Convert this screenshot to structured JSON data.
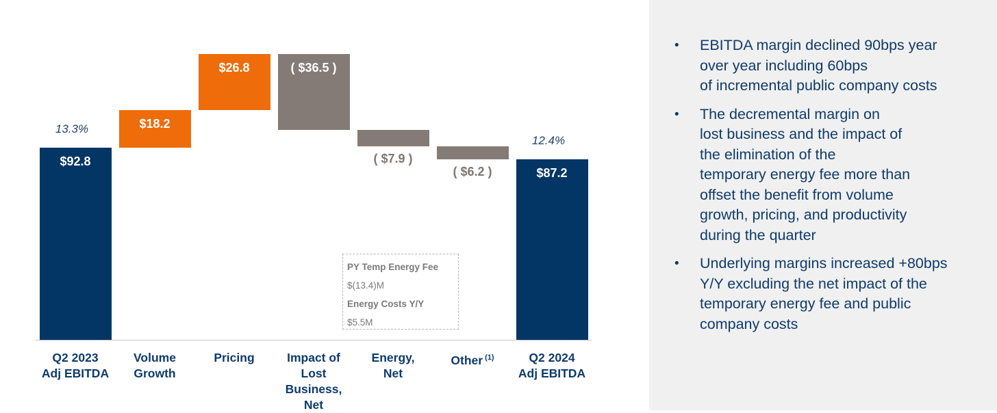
{
  "chart_data": {
    "type": "waterfall",
    "currency": "$M",
    "categories": [
      "Q2 2023 Adj EBITDA",
      "Volume Growth",
      "Pricing",
      "Impact of Lost Business, Net",
      "Energy, Net",
      "Other",
      "Q2 2024 Adj EBITDA"
    ],
    "steps": [
      {
        "category": "Q2 2023 Adj EBITDA",
        "kind": "total",
        "value": 92.8,
        "label": "$92.8",
        "margin_label": "13.3%"
      },
      {
        "category": "Volume Growth",
        "kind": "increase",
        "value": 18.2,
        "label": "$18.2"
      },
      {
        "category": "Pricing",
        "kind": "increase",
        "value": 26.8,
        "label": "$26.8"
      },
      {
        "category": "Impact of Lost Business, Net",
        "kind": "decrease",
        "value": -36.5,
        "label": "( $36.5 )"
      },
      {
        "category": "Energy, Net",
        "kind": "decrease",
        "value": -7.9,
        "label": "( $7.9 )"
      },
      {
        "category": "Other",
        "kind": "decrease",
        "value": -6.2,
        "label": "( $6.2 )"
      },
      {
        "category": "Q2 2024 Adj EBITDA",
        "kind": "total",
        "value": 87.2,
        "label": "$87.2",
        "margin_label": "12.4%"
      }
    ],
    "colors": {
      "total": "#033565",
      "increase": "#ee6c0a",
      "decrease": "#847b77",
      "total_label": "#ffffff",
      "decrease_label": "#7e7673",
      "pct_label": "#243f6b"
    },
    "callout": {
      "line1_title": "PY Temp Energy Fee",
      "line1_value": "$(13.4)M",
      "line2_title": "Energy Costs Y/Y",
      "line2_value": "$5.5M"
    }
  },
  "x_labels": [
    {
      "lines": [
        "Q2 2023",
        "Adj EBITDA"
      ]
    },
    {
      "lines": [
        "Volume",
        "Growth"
      ]
    },
    {
      "lines": [
        "Pricing"
      ]
    },
    {
      "lines": [
        "Impact of",
        "Lost",
        "Business,",
        "Net"
      ]
    },
    {
      "lines": [
        "Energy,",
        "Net"
      ]
    },
    {
      "lines": [
        "Other"
      ],
      "sup": "(1)"
    },
    {
      "lines": [
        "Q2 2024",
        "Adj EBITDA"
      ]
    }
  ],
  "bullets": [
    {
      "lines": [
        "EBITDA margin declined 90bps year",
        "over year including 60bps",
        "of incremental public company costs"
      ]
    },
    {
      "lines": [
        "The decremental margin on",
        "lost business and the impact of",
        "the elimination of the",
        "temporary energy fee more than",
        "offset the benefit from volume",
        "growth, pricing, and productivity",
        "during the quarter"
      ]
    },
    {
      "lines": [
        "Underlying margins increased +80bps",
        "Y/Y excluding the net impact of the",
        "temporary energy fee and public",
        "company costs"
      ]
    }
  ]
}
